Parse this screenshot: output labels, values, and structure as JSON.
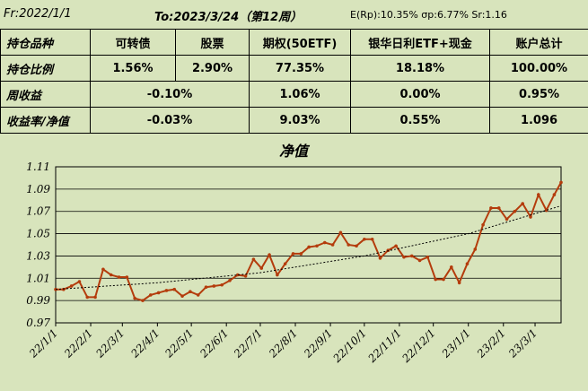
{
  "header": {
    "from": "Fr:2022/1/1",
    "to": "To:2023/3/24（第12周）",
    "stats": "E(Rp):10.35%  σp:6.77%  Sr:1.16"
  },
  "table": {
    "row1": {
      "label": "持仓品种",
      "c1": "可转债",
      "c2": "股票",
      "c3": "期权(50ETF)",
      "c4": "银华日利ETF+现金",
      "c5": "账户总计"
    },
    "row2": {
      "label": "持仓比例",
      "c1": "1.56%",
      "c2": "2.90%",
      "c3": "77.35%",
      "c4": "18.18%",
      "c5": "100.00%"
    },
    "row3": {
      "label": "周收益",
      "c12": "-0.10%",
      "c3": "1.06%",
      "c4": "0.00%",
      "c5": "0.95%"
    },
    "row4": {
      "label": "收益率/净值",
      "c12": "-0.03%",
      "c3": "9.03%",
      "c4": "0.55%",
      "c5": "1.096"
    }
  },
  "colors": {
    "series": "#b43c0c",
    "trend": "#000000",
    "background": "#d8e4bc",
    "grid": "#000000"
  },
  "chart_data": {
    "type": "line",
    "title": "净值",
    "xlabel": "",
    "ylabel": "",
    "ylim": [
      0.97,
      1.11
    ],
    "yticks": [
      "0.97",
      "0.99",
      "1.01",
      "1.03",
      "1.05",
      "1.07",
      "1.09",
      "1.11"
    ],
    "xticks": [
      "22/1/1",
      "22/2/1",
      "22/3/1",
      "22/4/1",
      "22/5/1",
      "22/6/1",
      "22/7/1",
      "22/8/1",
      "22/9/1",
      "22/10/1",
      "22/11/1",
      "22/12/1",
      "23/1/1",
      "23/2/1",
      "23/3/1"
    ],
    "grid": true,
    "series": [
      {
        "style": "solid-with-markers",
        "x": [
          "2022-01-01",
          "2022-01-08",
          "2022-01-15",
          "2022-01-22",
          "2022-01-29",
          "2022-02-05",
          "2022-02-12",
          "2022-02-19",
          "2022-02-26",
          "2022-03-05",
          "2022-03-12",
          "2022-03-19",
          "2022-03-26",
          "2022-04-02",
          "2022-04-09",
          "2022-04-16",
          "2022-04-23",
          "2022-04-30",
          "2022-05-07",
          "2022-05-14",
          "2022-05-21",
          "2022-05-28",
          "2022-06-04",
          "2022-06-11",
          "2022-06-18",
          "2022-06-25",
          "2022-07-02",
          "2022-07-09",
          "2022-07-16",
          "2022-07-23",
          "2022-07-30",
          "2022-08-06",
          "2022-08-13",
          "2022-08-20",
          "2022-08-27",
          "2022-09-03",
          "2022-09-10",
          "2022-09-17",
          "2022-09-24",
          "2022-10-01",
          "2022-10-08",
          "2022-10-15",
          "2022-10-22",
          "2022-10-29",
          "2022-11-05",
          "2022-11-12",
          "2022-11-19",
          "2022-11-26",
          "2022-12-03",
          "2022-12-10",
          "2022-12-17",
          "2022-12-24",
          "2022-12-31",
          "2023-01-07",
          "2023-01-14",
          "2023-01-21",
          "2023-01-28",
          "2023-02-04",
          "2023-02-11",
          "2023-02-18",
          "2023-02-25",
          "2023-03-04",
          "2023-03-11",
          "2023-03-18",
          "2023-03-24"
        ],
        "values": [
          1.0,
          1.0,
          1.003,
          1.007,
          0.993,
          0.993,
          1.018,
          1.013,
          1.011,
          1.011,
          0.992,
          0.99,
          0.995,
          0.997,
          0.999,
          1.0,
          0.994,
          0.998,
          0.995,
          1.002,
          1.003,
          1.004,
          1.008,
          1.013,
          1.012,
          1.027,
          1.019,
          1.031,
          1.013,
          1.023,
          1.032,
          1.032,
          1.038,
          1.039,
          1.042,
          1.04,
          1.051,
          1.04,
          1.039,
          1.045,
          1.045,
          1.028,
          1.035,
          1.039,
          1.029,
          1.03,
          1.026,
          1.029,
          1.009,
          1.009,
          1.02,
          1.006,
          1.023,
          1.036,
          1.058,
          1.073,
          1.073,
          1.063,
          1.07,
          1.077,
          1.065,
          1.085,
          1.071,
          1.085,
          1.096
        ]
      },
      {
        "style": "dotted-trend",
        "x": [
          "2022-01-01",
          "2022-04-01",
          "2022-07-01",
          "2022-10-01",
          "2023-01-01",
          "2023-03-24"
        ],
        "values": [
          1.0,
          1.006,
          1.015,
          1.03,
          1.05,
          1.075
        ]
      }
    ]
  }
}
